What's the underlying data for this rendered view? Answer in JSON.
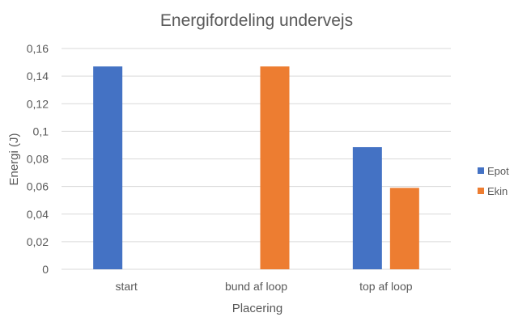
{
  "chart_data": {
    "type": "bar",
    "title": "Energifordeling undervejs",
    "xlabel": "Placering",
    "ylabel": "Energi (J)",
    "categories": [
      "start",
      "bund af loop",
      "top af loop"
    ],
    "series": [
      {
        "name": "Epot",
        "color": "#4472C4",
        "values": [
          0.147,
          0,
          0.0885
        ]
      },
      {
        "name": "Ekin",
        "color": "#ED7D31",
        "values": [
          0,
          0.147,
          0.059
        ]
      }
    ],
    "ylim": [
      0,
      0.16
    ],
    "yticks": [
      {
        "value": 0,
        "label": "0"
      },
      {
        "value": 0.02,
        "label": "0,02"
      },
      {
        "value": 0.04,
        "label": "0,04"
      },
      {
        "value": 0.06,
        "label": "0,06"
      },
      {
        "value": 0.08,
        "label": "0,08"
      },
      {
        "value": 0.1,
        "label": "0,1"
      },
      {
        "value": 0.12,
        "label": "0,12"
      },
      {
        "value": 0.14,
        "label": "0,14"
      },
      {
        "value": 0.16,
        "label": "0,16"
      }
    ],
    "grid": true,
    "legend": "right"
  }
}
